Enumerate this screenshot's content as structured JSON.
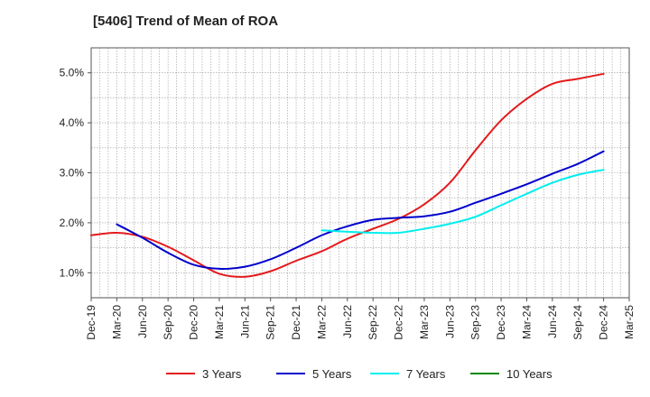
{
  "chart_data": {
    "type": "line",
    "title": "[5406]  Trend of Mean of ROA",
    "xlabel": "",
    "ylabel": "",
    "grid": true,
    "legend_position": "bottom",
    "ylim": [
      0.5,
      5.5
    ],
    "yticks": [
      1.0,
      2.0,
      3.0,
      4.0,
      5.0
    ],
    "ytick_labels": [
      "1.0%",
      "2.0%",
      "3.0%",
      "4.0%",
      "5.0%"
    ],
    "x_categories": [
      "Dec-19",
      "Mar-20",
      "Jun-20",
      "Sep-20",
      "Dec-20",
      "Mar-21",
      "Jun-21",
      "Sep-21",
      "Dec-21",
      "Mar-22",
      "Jun-22",
      "Sep-22",
      "Dec-22",
      "Mar-23",
      "Jun-23",
      "Sep-23",
      "Dec-23",
      "Mar-24",
      "Jun-24",
      "Sep-24",
      "Dec-24",
      "Mar-25"
    ],
    "series": [
      {
        "name": "3 Years",
        "color": "#e41a1c",
        "values": [
          1.75,
          1.8,
          1.72,
          1.52,
          1.25,
          0.98,
          0.92,
          1.03,
          1.24,
          1.43,
          1.68,
          1.88,
          2.08,
          2.37,
          2.8,
          3.45,
          4.05,
          4.48,
          4.78,
          4.88,
          4.98,
          null
        ]
      },
      {
        "name": "5 Years",
        "color": "#0000cc",
        "values": [
          null,
          1.97,
          1.7,
          1.4,
          1.16,
          1.08,
          1.12,
          1.27,
          1.5,
          1.75,
          1.93,
          2.06,
          2.1,
          2.13,
          2.22,
          2.4,
          2.58,
          2.77,
          2.98,
          3.18,
          3.43,
          null
        ]
      },
      {
        "name": "7 Years",
        "color": "#00eeee",
        "values": [
          null,
          null,
          null,
          null,
          null,
          null,
          null,
          null,
          null,
          1.85,
          1.82,
          1.8,
          1.8,
          1.88,
          1.98,
          2.12,
          2.35,
          2.58,
          2.8,
          2.96,
          3.06,
          null
        ]
      },
      {
        "name": "10 Years",
        "color": "#008800",
        "values": [
          null,
          null,
          null,
          null,
          null,
          null,
          null,
          null,
          null,
          null,
          null,
          null,
          null,
          null,
          null,
          null,
          null,
          null,
          null,
          null,
          null,
          null
        ]
      }
    ]
  }
}
